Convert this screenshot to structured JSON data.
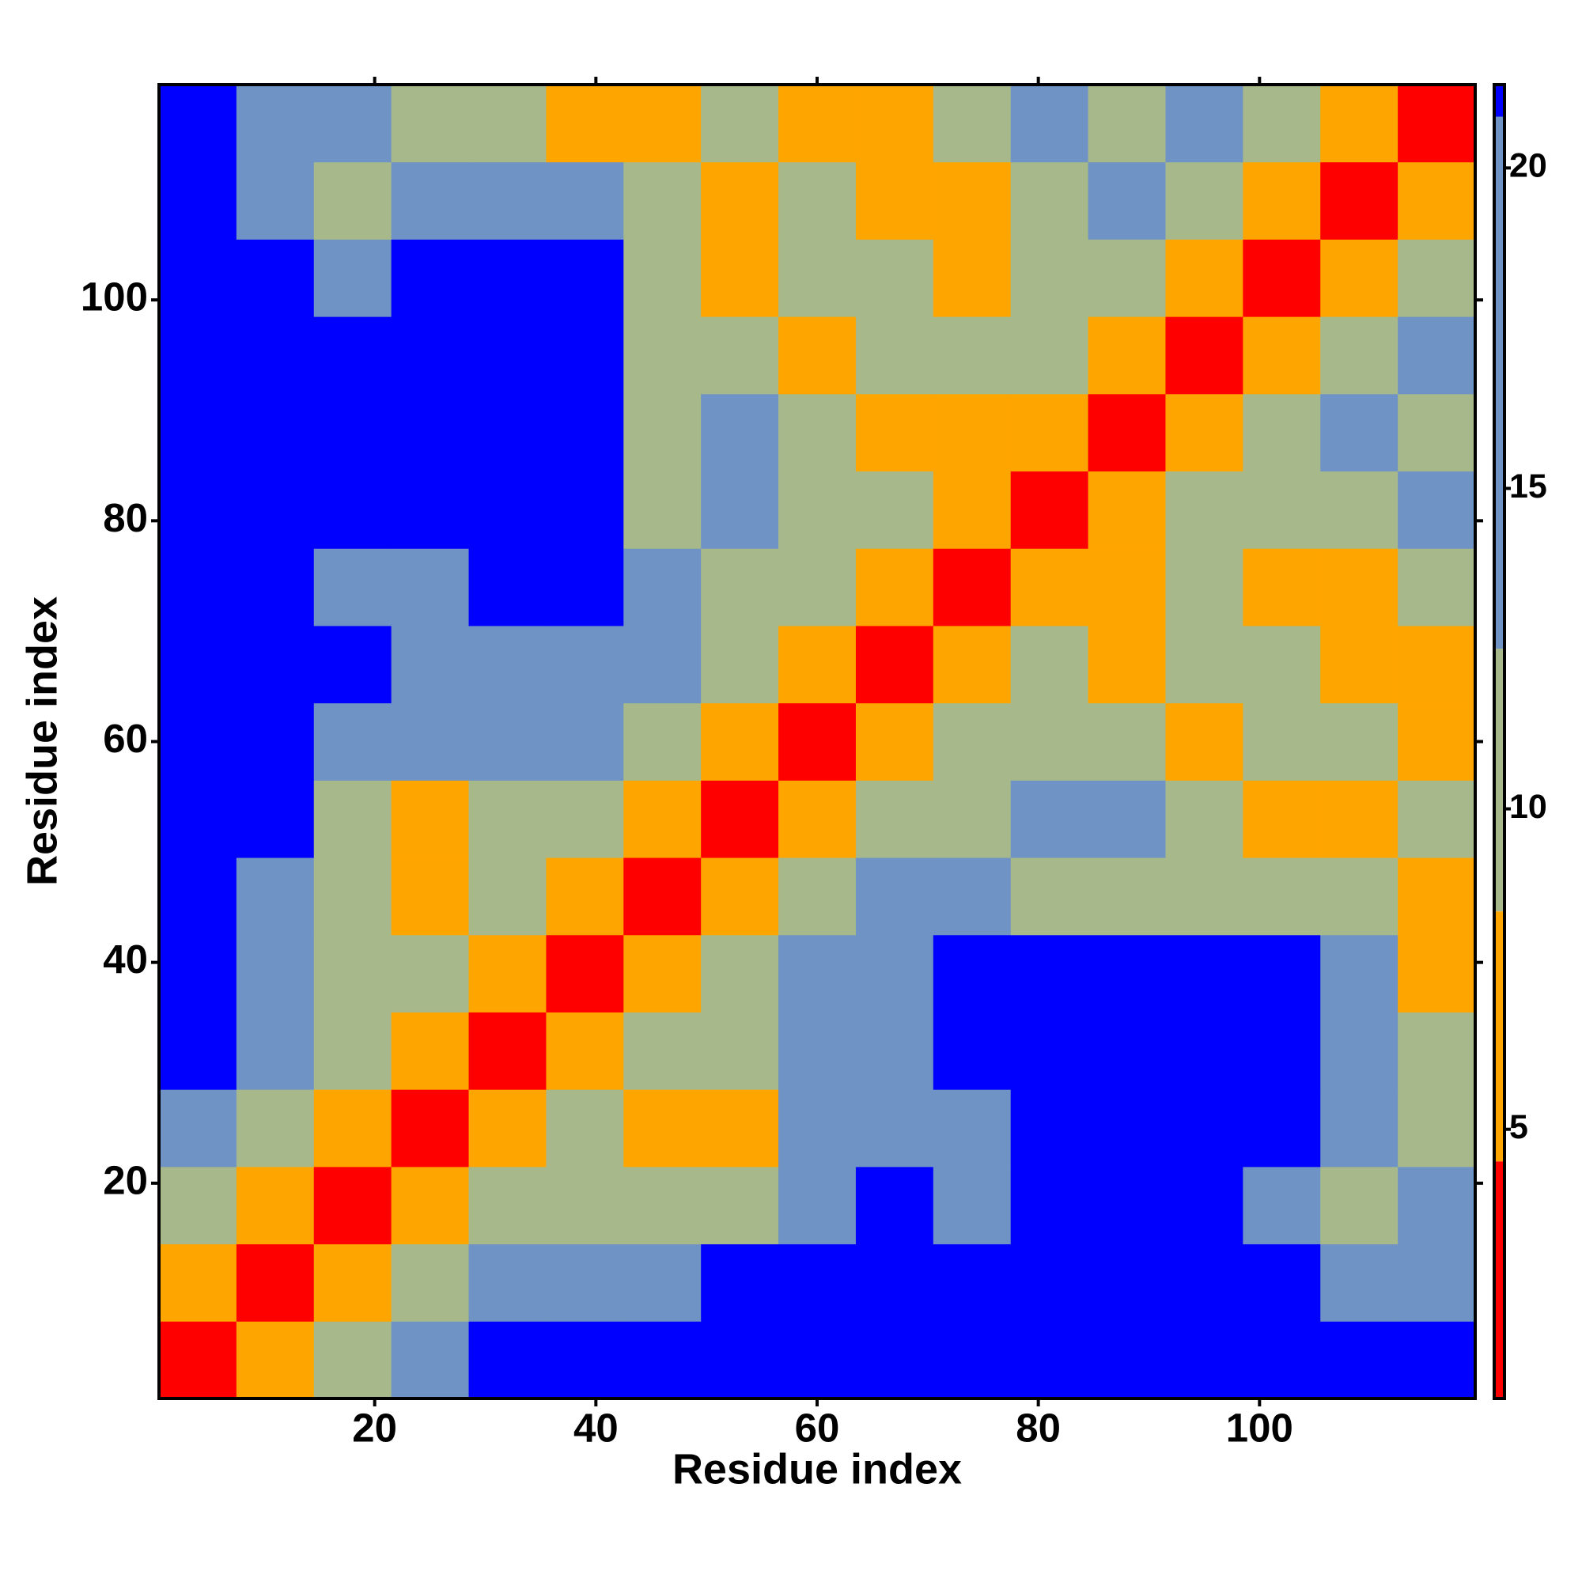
{
  "chart_data": {
    "type": "heatmap",
    "xlabel": "Residue index",
    "ylabel": "Residue index",
    "x": [
      4,
      11,
      18,
      25,
      32,
      39,
      46,
      53,
      60,
      67,
      74,
      81,
      88,
      95,
      102,
      109,
      116
    ],
    "y": [
      4,
      11,
      18,
      25,
      32,
      39,
      46,
      53,
      60,
      67,
      74,
      81,
      88,
      95,
      102,
      109,
      116
    ],
    "z": [
      [
        3,
        8,
        12,
        15,
        21,
        21,
        21,
        21,
        21,
        21,
        21,
        21,
        21,
        21,
        21,
        21,
        21
      ],
      [
        8,
        3,
        8,
        11,
        13,
        16,
        18,
        21,
        21,
        21,
        21,
        21,
        21,
        21,
        21,
        14,
        15
      ],
      [
        12,
        8,
        3,
        7,
        10,
        12,
        11,
        12,
        17,
        21,
        18,
        21,
        21,
        21,
        17,
        12,
        13
      ],
      [
        15,
        11,
        7,
        3,
        7,
        9,
        7,
        8,
        14,
        18,
        17,
        21,
        21,
        21,
        21,
        14,
        12
      ],
      [
        21,
        13,
        10,
        7,
        3,
        7,
        10,
        11,
        14,
        16,
        21,
        21,
        21,
        21,
        21,
        13,
        12
      ],
      [
        21,
        16,
        12,
        9,
        7,
        3,
        8,
        12,
        13,
        17,
        21,
        21,
        21,
        21,
        21,
        16,
        8
      ],
      [
        21,
        18,
        11,
        7,
        10,
        8,
        3,
        7,
        11,
        14,
        15,
        12,
        9,
        10,
        12,
        9,
        7
      ],
      [
        21,
        21,
        12,
        8,
        11,
        12,
        7,
        3,
        7,
        11,
        12,
        14,
        13,
        11,
        8,
        8,
        10
      ],
      [
        21,
        21,
        17,
        14,
        14,
        13,
        11,
        7,
        3,
        6,
        10,
        11,
        10,
        7,
        9,
        12,
        7
      ],
      [
        21,
        21,
        21,
        18,
        16,
        17,
        14,
        11,
        6,
        3,
        7,
        9,
        7,
        10,
        12,
        8,
        7
      ],
      [
        21,
        21,
        18,
        17,
        21,
        21,
        15,
        12,
        10,
        7,
        3,
        6,
        8,
        11,
        7,
        7,
        11
      ],
      [
        21,
        21,
        21,
        21,
        21,
        21,
        12,
        14,
        11,
        9,
        6,
        3,
        7,
        9,
        10,
        12,
        14
      ],
      [
        21,
        21,
        21,
        21,
        21,
        21,
        9,
        13,
        10,
        7,
        8,
        7,
        3,
        7,
        10,
        13,
        12
      ],
      [
        21,
        21,
        21,
        21,
        21,
        21,
        10,
        11,
        7,
        10,
        11,
        9,
        7,
        3,
        7,
        11,
        14
      ],
      [
        21,
        21,
        17,
        21,
        21,
        21,
        12,
        8,
        9,
        12,
        7,
        10,
        10,
        7,
        3,
        7,
        11
      ],
      [
        21,
        14,
        12,
        14,
        13,
        16,
        9,
        8,
        12,
        8,
        7,
        12,
        13,
        11,
        7,
        3,
        7
      ],
      [
        21,
        15,
        13,
        12,
        12,
        8,
        7,
        10,
        7,
        7,
        11,
        14,
        12,
        14,
        11,
        7,
        3
      ]
    ],
    "xlim": [
      0.5,
      119.5
    ],
    "ylim": [
      0.5,
      119.5
    ],
    "xticks": [
      20,
      40,
      60,
      80,
      100
    ],
    "yticks": [
      20,
      40,
      60,
      80,
      100
    ],
    "colorbar": {
      "lim": [
        0.8,
        21.3
      ],
      "ticks": [
        5,
        10,
        15,
        20
      ],
      "scale": [
        {
          "from": 0.8,
          "to": 4.5,
          "color": "#ff0000"
        },
        {
          "from": 4.5,
          "to": 8.4,
          "color": "#ffa500"
        },
        {
          "from": 8.4,
          "to": 12.5,
          "color": "#a7b98a"
        },
        {
          "from": 12.5,
          "to": 20.8,
          "color": "#6f93c4"
        },
        {
          "from": 20.8,
          "to": 21.3,
          "color": "#0000ff"
        }
      ]
    }
  }
}
